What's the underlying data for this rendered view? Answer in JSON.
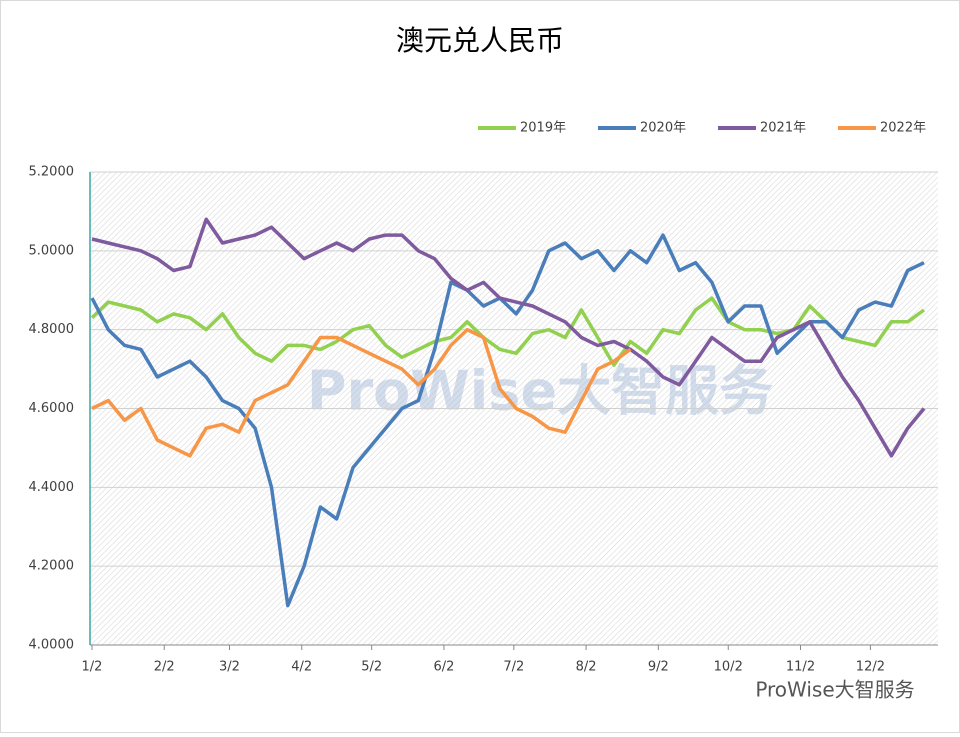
{
  "chart_data": {
    "type": "line",
    "title": "澳元兑人民币",
    "watermark": "ProWise大智服务",
    "footer_brand": "ProWise大智服务",
    "x": [
      0,
      7,
      14,
      21,
      28,
      35,
      42,
      49,
      56,
      63,
      70,
      77,
      84,
      91,
      98,
      105,
      112,
      119,
      126,
      133,
      140,
      147,
      154,
      161,
      168,
      175,
      182,
      189,
      196,
      203,
      210,
      217,
      224,
      231,
      238,
      245,
      252,
      259,
      266,
      273,
      280,
      287,
      294,
      301,
      308,
      315,
      322,
      329,
      336,
      343,
      350,
      357
    ],
    "xlim": [
      0,
      363
    ],
    "xticks": [
      {
        "value": 0,
        "label": "1/2"
      },
      {
        "value": 31,
        "label": "2/2"
      },
      {
        "value": 59,
        "label": "3/2"
      },
      {
        "value": 90,
        "label": "4/2"
      },
      {
        "value": 120,
        "label": "5/2"
      },
      {
        "value": 151,
        "label": "6/2"
      },
      {
        "value": 181,
        "label": "7/2"
      },
      {
        "value": 212,
        "label": "8/2"
      },
      {
        "value": 243,
        "label": "9/2"
      },
      {
        "value": 273,
        "label": "10/2"
      },
      {
        "value": 304,
        "label": "11/2"
      },
      {
        "value": 334,
        "label": "12/2"
      }
    ],
    "ylim": [
      4,
      5.2
    ],
    "yticks": [
      {
        "value": 4,
        "label": "4.0000"
      },
      {
        "value": 4.2,
        "label": "4.2000"
      },
      {
        "value": 4.4,
        "label": "4.4000"
      },
      {
        "value": 4.6,
        "label": "4.6000"
      },
      {
        "value": 4.8,
        "label": "4.8000"
      },
      {
        "value": 5,
        "label": "5.0000"
      },
      {
        "value": 5.2,
        "label": "5.2000"
      }
    ],
    "grid": true,
    "legend": "top-right",
    "series": [
      {
        "name": "2019年",
        "color": "#92d050",
        "values": [
          4.83,
          4.87,
          4.86,
          4.85,
          4.82,
          4.84,
          4.83,
          4.8,
          4.84,
          4.78,
          4.74,
          4.72,
          4.76,
          4.76,
          4.75,
          4.77,
          4.8,
          4.81,
          4.76,
          4.73,
          4.75,
          4.77,
          4.78,
          4.82,
          4.78,
          4.75,
          4.74,
          4.79,
          4.8,
          4.78,
          4.85,
          4.78,
          4.71,
          4.77,
          4.74,
          4.8,
          4.79,
          4.85,
          4.88,
          4.82,
          4.8,
          4.8,
          4.79,
          4.8,
          4.86,
          4.82,
          4.78,
          4.77,
          4.76,
          4.82,
          4.82,
          4.85
        ]
      },
      {
        "name": "2020年",
        "color": "#4a7ebb",
        "values": [
          4.88,
          4.8,
          4.76,
          4.75,
          4.68,
          4.7,
          4.72,
          4.68,
          4.62,
          4.6,
          4.55,
          4.4,
          4.1,
          4.2,
          4.35,
          4.32,
          4.45,
          4.5,
          4.55,
          4.6,
          4.62,
          4.75,
          4.92,
          4.9,
          4.86,
          4.88,
          4.84,
          4.9,
          5.0,
          5.02,
          4.98,
          5.0,
          4.95,
          5.0,
          4.97,
          5.04,
          4.95,
          4.97,
          4.92,
          4.82,
          4.86,
          4.86,
          4.74,
          4.78,
          4.82,
          4.82,
          4.78,
          4.85,
          4.87,
          4.86,
          4.95,
          4.97
        ]
      },
      {
        "name": "2021年",
        "color": "#7f5a9e",
        "values": [
          5.03,
          5.02,
          5.01,
          5.0,
          4.98,
          4.95,
          4.96,
          5.08,
          5.02,
          5.03,
          5.04,
          5.06,
          5.02,
          4.98,
          5.0,
          5.02,
          5.0,
          5.03,
          5.04,
          5.04,
          5.0,
          4.98,
          4.93,
          4.9,
          4.92,
          4.88,
          4.87,
          4.86,
          4.84,
          4.82,
          4.78,
          4.76,
          4.77,
          4.75,
          4.72,
          4.68,
          4.66,
          4.72,
          4.78,
          4.75,
          4.72,
          4.72,
          4.78,
          4.8,
          4.82,
          4.75,
          4.68,
          4.62,
          4.55,
          4.48,
          4.55,
          4.6
        ]
      },
      {
        "name": "2022年",
        "color": "#f79646",
        "values": [
          4.6,
          4.62,
          4.57,
          4.6,
          4.52,
          4.5,
          4.48,
          4.55,
          4.56,
          4.54,
          4.62,
          4.64,
          4.66,
          4.72,
          4.78,
          4.78,
          4.76,
          4.74,
          4.72,
          4.7,
          4.66,
          4.7,
          4.76,
          4.8,
          4.78,
          4.65,
          4.6,
          4.58,
          4.55,
          4.54,
          4.62,
          4.7,
          4.72,
          4.75,
          null,
          null,
          null,
          null,
          null,
          null,
          null,
          null,
          null,
          null,
          null,
          null,
          null,
          null,
          null,
          null,
          null,
          null
        ]
      }
    ]
  }
}
